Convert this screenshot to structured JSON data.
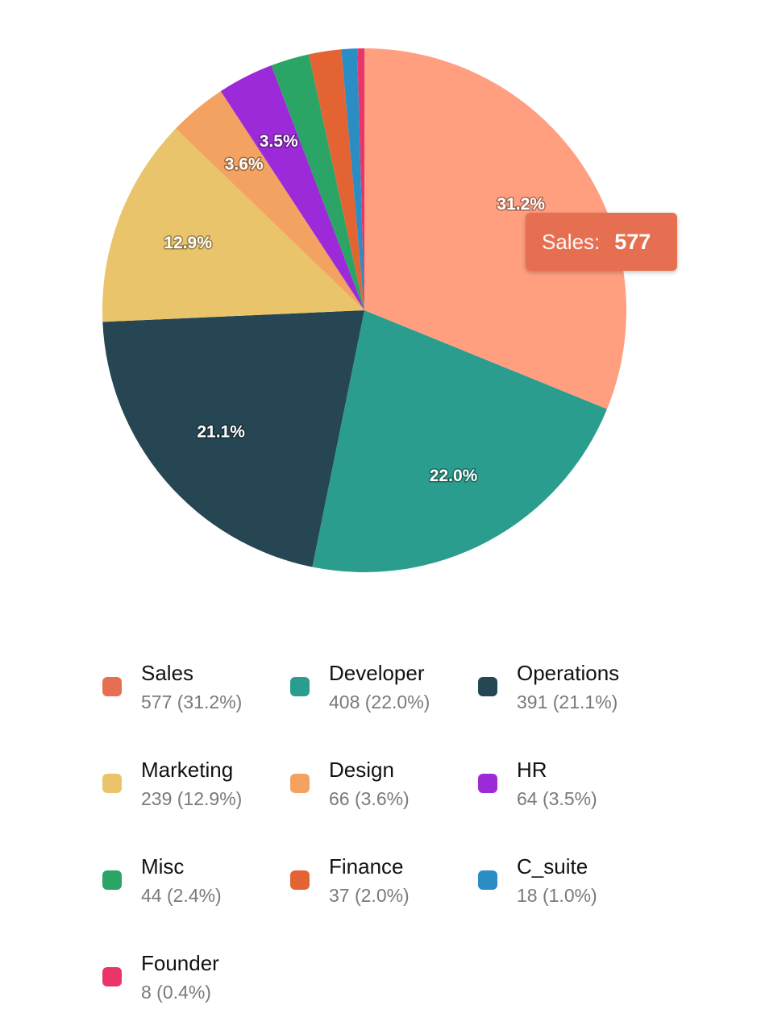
{
  "chart_data": {
    "type": "pie",
    "title": "",
    "categories": [
      "Sales",
      "Developer",
      "Operations",
      "Marketing",
      "Design",
      "HR",
      "Misc",
      "Finance",
      "C_suite",
      "Founder"
    ],
    "values": [
      577,
      408,
      391,
      239,
      66,
      64,
      44,
      37,
      18,
      8
    ],
    "slice_colors": [
      "#FF9F80",
      "#2A9D8F",
      "#264653",
      "#E9C46A",
      "#F4A261",
      "#9D2AD8",
      "#2AA566",
      "#E36432",
      "#2A8EC4",
      "#E9356A"
    ],
    "swatch_colors": [
      "#E76F51",
      "#2A9D8F",
      "#264653",
      "#E9C46A",
      "#F4A261",
      "#9D2AD8",
      "#2AA566",
      "#E36432",
      "#2A8EC4",
      "#E9356A"
    ],
    "slice_labels": [
      "31.2%",
      "22.0%",
      "21.1%",
      "12.9%",
      "3.6%",
      "3.5%",
      "",
      "",
      "",
      ""
    ],
    "legend": {
      "placement": "bottom",
      "items": [
        {
          "name": "Sales",
          "value_text": "577 (31.2%)"
        },
        {
          "name": "Developer",
          "value_text": "408 (22.0%)"
        },
        {
          "name": "Operations",
          "value_text": "391 (21.1%)"
        },
        {
          "name": "Marketing",
          "value_text": "239 (12.9%)"
        },
        {
          "name": "Design",
          "value_text": "66 (3.6%)"
        },
        {
          "name": "HR",
          "value_text": "64 (3.5%)"
        },
        {
          "name": "Misc",
          "value_text": "44 (2.4%)"
        },
        {
          "name": "Finance",
          "value_text": "37 (2.0%)"
        },
        {
          "name": "C_suite",
          "value_text": "18 (1.0%)"
        },
        {
          "name": "Founder",
          "value_text": "8 (0.4%)"
        }
      ]
    },
    "tooltip": {
      "label": "Sales:",
      "value": "577",
      "color": "#E76F51"
    }
  }
}
